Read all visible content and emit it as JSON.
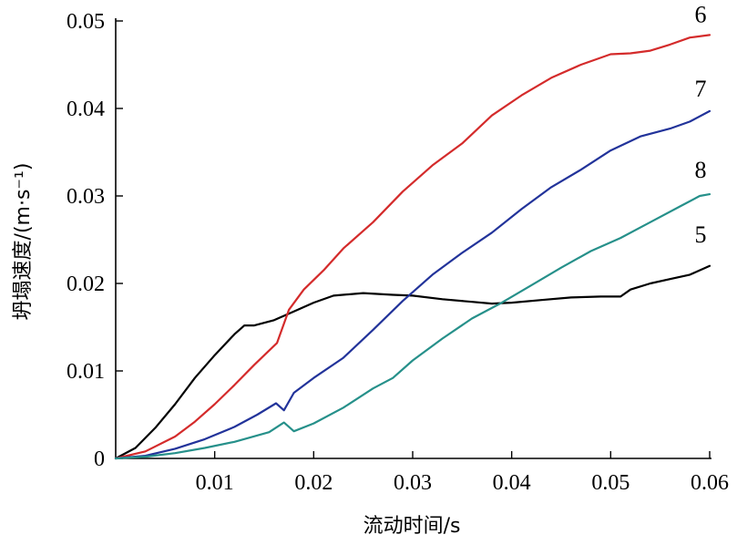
{
  "chart_data": {
    "type": "line",
    "xlabel": "流动时间/s",
    "ylabel": "坍塌速度/(m·s⁻¹)",
    "xlim": [
      0,
      0.06
    ],
    "ylim": [
      0,
      0.05
    ],
    "xticks": [
      0.01,
      0.02,
      0.03,
      0.04,
      0.05,
      0.06
    ],
    "xtick_labels": [
      "0.01",
      "0.02",
      "0.03",
      "0.04",
      "0.05",
      "0.06"
    ],
    "yticks": [
      0,
      0.01,
      0.02,
      0.03,
      0.04,
      0.05
    ],
    "ytick_labels": [
      "0",
      "0.01",
      "0.02",
      "0.03",
      "0.04",
      "0.05"
    ],
    "grid": false,
    "legend": "none",
    "series": [
      {
        "name": "5",
        "color": "#000000",
        "points": [
          [
            0,
            0
          ],
          [
            0.002,
            0.0012
          ],
          [
            0.004,
            0.0035
          ],
          [
            0.006,
            0.0062
          ],
          [
            0.008,
            0.0092
          ],
          [
            0.01,
            0.0118
          ],
          [
            0.012,
            0.0142
          ],
          [
            0.013,
            0.0152
          ],
          [
            0.014,
            0.0152
          ],
          [
            0.016,
            0.0158
          ],
          [
            0.018,
            0.0168
          ],
          [
            0.02,
            0.0178
          ],
          [
            0.022,
            0.0186
          ],
          [
            0.025,
            0.0189
          ],
          [
            0.028,
            0.0187
          ],
          [
            0.03,
            0.0186
          ],
          [
            0.033,
            0.0182
          ],
          [
            0.036,
            0.0179
          ],
          [
            0.038,
            0.0177
          ],
          [
            0.04,
            0.0178
          ],
          [
            0.043,
            0.0181
          ],
          [
            0.046,
            0.0184
          ],
          [
            0.049,
            0.0185
          ],
          [
            0.051,
            0.0185
          ],
          [
            0.052,
            0.0193
          ],
          [
            0.054,
            0.02
          ],
          [
            0.056,
            0.0205
          ],
          [
            0.058,
            0.021
          ],
          [
            0.06,
            0.022
          ]
        ]
      },
      {
        "name": "6",
        "color": "#d42b2b",
        "points": [
          [
            0,
            0
          ],
          [
            0.003,
            0.0008
          ],
          [
            0.006,
            0.0025
          ],
          [
            0.008,
            0.0042
          ],
          [
            0.01,
            0.0062
          ],
          [
            0.012,
            0.0084
          ],
          [
            0.014,
            0.0107
          ],
          [
            0.0163,
            0.0132
          ],
          [
            0.0175,
            0.017
          ],
          [
            0.019,
            0.0193
          ],
          [
            0.021,
            0.0215
          ],
          [
            0.023,
            0.024
          ],
          [
            0.026,
            0.027
          ],
          [
            0.029,
            0.0305
          ],
          [
            0.032,
            0.0335
          ],
          [
            0.035,
            0.036
          ],
          [
            0.038,
            0.0392
          ],
          [
            0.041,
            0.0415
          ],
          [
            0.044,
            0.0435
          ],
          [
            0.047,
            0.045
          ],
          [
            0.05,
            0.0462
          ],
          [
            0.052,
            0.0463
          ],
          [
            0.054,
            0.0466
          ],
          [
            0.056,
            0.0473
          ],
          [
            0.058,
            0.0481
          ],
          [
            0.06,
            0.0484
          ]
        ]
      },
      {
        "name": "7",
        "color": "#22339a",
        "points": [
          [
            0,
            0
          ],
          [
            0.003,
            0.0003
          ],
          [
            0.006,
            0.0011
          ],
          [
            0.009,
            0.0022
          ],
          [
            0.012,
            0.0036
          ],
          [
            0.0143,
            0.005
          ],
          [
            0.0162,
            0.0063
          ],
          [
            0.017,
            0.0055
          ],
          [
            0.018,
            0.0075
          ],
          [
            0.02,
            0.0092
          ],
          [
            0.023,
            0.0115
          ],
          [
            0.026,
            0.0147
          ],
          [
            0.029,
            0.018
          ],
          [
            0.032,
            0.021
          ],
          [
            0.035,
            0.0235
          ],
          [
            0.038,
            0.0258
          ],
          [
            0.041,
            0.0285
          ],
          [
            0.044,
            0.031
          ],
          [
            0.047,
            0.033
          ],
          [
            0.05,
            0.0352
          ],
          [
            0.053,
            0.0368
          ],
          [
            0.056,
            0.0377
          ],
          [
            0.058,
            0.0385
          ],
          [
            0.06,
            0.0397
          ]
        ]
      },
      {
        "name": "8",
        "color": "#26908a",
        "points": [
          [
            0,
            0
          ],
          [
            0.003,
            0.0002
          ],
          [
            0.006,
            0.0006
          ],
          [
            0.009,
            0.0012
          ],
          [
            0.012,
            0.0019
          ],
          [
            0.0155,
            0.003
          ],
          [
            0.017,
            0.0041
          ],
          [
            0.018,
            0.0031
          ],
          [
            0.02,
            0.004
          ],
          [
            0.023,
            0.0058
          ],
          [
            0.026,
            0.008
          ],
          [
            0.028,
            0.0092
          ],
          [
            0.03,
            0.0112
          ],
          [
            0.033,
            0.0137
          ],
          [
            0.036,
            0.016
          ],
          [
            0.039,
            0.0178
          ],
          [
            0.042,
            0.0198
          ],
          [
            0.045,
            0.0218
          ],
          [
            0.048,
            0.0237
          ],
          [
            0.051,
            0.0252
          ],
          [
            0.054,
            0.027
          ],
          [
            0.057,
            0.0288
          ],
          [
            0.059,
            0.03
          ],
          [
            0.06,
            0.0302
          ]
        ]
      }
    ]
  }
}
